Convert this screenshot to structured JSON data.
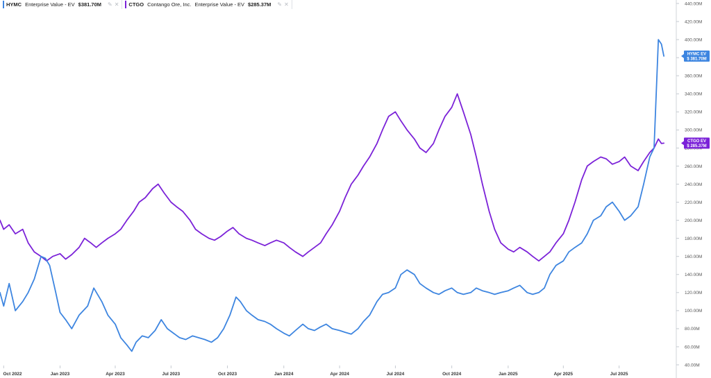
{
  "legend": [
    {
      "ticker": "HYMC",
      "name": "",
      "metric": "Enterprise Value - EV",
      "value": "$381.70M",
      "color": "#3d85e0",
      "icons": [
        "edit-icon",
        "close-icon"
      ]
    },
    {
      "ticker": "CTGO",
      "name": "Contango Ore, Inc.",
      "metric": "Enterprise Value - EV",
      "value": "$285.37M",
      "color": "#7b22d8",
      "icons": [
        "edit-icon",
        "close-icon"
      ]
    }
  ],
  "flags": [
    {
      "line1": "HYMC EV",
      "line2": "$ 381.70M",
      "color": "#3d85e0",
      "value": 381.7
    },
    {
      "line1": "CTGO EV",
      "line2": "$ 285.37M",
      "color": "#7b22d8",
      "value": 285.37
    }
  ],
  "chart_data": {
    "type": "line",
    "yaxis": {
      "min": 40,
      "max": 440,
      "position": "right",
      "ticks": [
        40,
        60,
        80,
        100,
        120,
        140,
        160,
        180,
        200,
        220,
        240,
        260,
        280,
        300,
        320,
        340,
        360,
        380,
        400,
        420,
        440
      ],
      "tick_labels": [
        "40.00M",
        "60.00M",
        "80.00M",
        "100.00M",
        "120.00M",
        "140.00M",
        "160.00M",
        "180.00M",
        "200.00M",
        "220.00M",
        "240.00M",
        "260.00M",
        "280.00M",
        "300.00M",
        "320.00M",
        "340.00M",
        "360.00M",
        "380.00M",
        "400.00M",
        "420.00M",
        "440.00M"
      ]
    },
    "xaxis": {
      "min": "2022-09-25",
      "max": "2025-09-30",
      "ticks": [
        "2022-10-01",
        "2023-01-01",
        "2023-04-01",
        "2023-07-01",
        "2023-10-01",
        "2024-01-01",
        "2024-04-01",
        "2024-07-01",
        "2024-10-01",
        "2025-01-01",
        "2025-04-01",
        "2025-07-01"
      ],
      "tick_labels": [
        "Oct 2022",
        "Jan 2023",
        "Apr 2023",
        "Jul 2023",
        "Oct 2023",
        "Jan 2024",
        "Apr 2024",
        "Jul 2024",
        "Oct 2024",
        "Jan 2025",
        "Apr 2025",
        "Jul 2025"
      ]
    },
    "grid": false,
    "series": [
      {
        "name": "HYMC",
        "color": "#3d85e0",
        "points": [
          [
            "2022-09-25",
            120
          ],
          [
            "2022-10-01",
            105
          ],
          [
            "2022-10-10",
            130
          ],
          [
            "2022-10-20",
            100
          ],
          [
            "2022-11-01",
            110
          ],
          [
            "2022-11-10",
            120
          ],
          [
            "2022-11-20",
            135
          ],
          [
            "2022-12-01",
            160
          ],
          [
            "2022-12-08",
            158
          ],
          [
            "2022-12-15",
            150
          ],
          [
            "2022-12-25",
            120
          ],
          [
            "2023-01-01",
            98
          ],
          [
            "2023-01-10",
            90
          ],
          [
            "2023-01-20",
            80
          ],
          [
            "2023-02-01",
            95
          ],
          [
            "2023-02-15",
            105
          ],
          [
            "2023-02-25",
            125
          ],
          [
            "2023-03-10",
            110
          ],
          [
            "2023-03-20",
            95
          ],
          [
            "2023-04-01",
            85
          ],
          [
            "2023-04-10",
            70
          ],
          [
            "2023-04-20",
            62
          ],
          [
            "2023-04-28",
            55
          ],
          [
            "2023-05-05",
            65
          ],
          [
            "2023-05-15",
            72
          ],
          [
            "2023-05-25",
            70
          ],
          [
            "2023-06-05",
            78
          ],
          [
            "2023-06-15",
            90
          ],
          [
            "2023-06-25",
            80
          ],
          [
            "2023-07-05",
            75
          ],
          [
            "2023-07-15",
            70
          ],
          [
            "2023-07-25",
            68
          ],
          [
            "2023-08-05",
            72
          ],
          [
            "2023-08-15",
            70
          ],
          [
            "2023-08-25",
            68
          ],
          [
            "2023-09-05",
            65
          ],
          [
            "2023-09-15",
            70
          ],
          [
            "2023-09-25",
            80
          ],
          [
            "2023-10-05",
            95
          ],
          [
            "2023-10-15",
            115
          ],
          [
            "2023-10-22",
            110
          ],
          [
            "2023-11-01",
            100
          ],
          [
            "2023-11-10",
            95
          ],
          [
            "2023-11-20",
            90
          ],
          [
            "2023-12-01",
            88
          ],
          [
            "2023-12-10",
            85
          ],
          [
            "2023-12-20",
            80
          ],
          [
            "2024-01-01",
            75
          ],
          [
            "2024-01-10",
            72
          ],
          [
            "2024-01-20",
            78
          ],
          [
            "2024-02-01",
            85
          ],
          [
            "2024-02-10",
            80
          ],
          [
            "2024-02-20",
            78
          ],
          [
            "2024-03-01",
            82
          ],
          [
            "2024-03-10",
            85
          ],
          [
            "2024-03-20",
            80
          ],
          [
            "2024-04-01",
            78
          ],
          [
            "2024-04-10",
            76
          ],
          [
            "2024-04-20",
            74
          ],
          [
            "2024-05-01",
            80
          ],
          [
            "2024-05-10",
            88
          ],
          [
            "2024-05-20",
            95
          ],
          [
            "2024-06-01",
            110
          ],
          [
            "2024-06-10",
            118
          ],
          [
            "2024-06-20",
            120
          ],
          [
            "2024-07-01",
            125
          ],
          [
            "2024-07-10",
            140
          ],
          [
            "2024-07-20",
            145
          ],
          [
            "2024-08-01",
            140
          ],
          [
            "2024-08-10",
            130
          ],
          [
            "2024-08-20",
            125
          ],
          [
            "2024-09-01",
            120
          ],
          [
            "2024-09-10",
            118
          ],
          [
            "2024-09-20",
            122
          ],
          [
            "2024-10-01",
            125
          ],
          [
            "2024-10-10",
            120
          ],
          [
            "2024-10-20",
            118
          ],
          [
            "2024-11-01",
            120
          ],
          [
            "2024-11-10",
            125
          ],
          [
            "2024-11-20",
            122
          ],
          [
            "2024-12-01",
            120
          ],
          [
            "2024-12-10",
            118
          ],
          [
            "2024-12-20",
            120
          ],
          [
            "2025-01-01",
            122
          ],
          [
            "2025-01-10",
            125
          ],
          [
            "2025-01-20",
            128
          ],
          [
            "2025-02-01",
            120
          ],
          [
            "2025-02-10",
            118
          ],
          [
            "2025-02-20",
            120
          ],
          [
            "2025-03-01",
            125
          ],
          [
            "2025-03-10",
            140
          ],
          [
            "2025-03-20",
            150
          ],
          [
            "2025-04-01",
            155
          ],
          [
            "2025-04-10",
            165
          ],
          [
            "2025-04-20",
            170
          ],
          [
            "2025-05-01",
            175
          ],
          [
            "2025-05-10",
            185
          ],
          [
            "2025-05-20",
            200
          ],
          [
            "2025-06-01",
            205
          ],
          [
            "2025-06-10",
            215
          ],
          [
            "2025-06-20",
            220
          ],
          [
            "2025-07-01",
            210
          ],
          [
            "2025-07-10",
            200
          ],
          [
            "2025-07-20",
            205
          ],
          [
            "2025-08-01",
            215
          ],
          [
            "2025-08-10",
            240
          ],
          [
            "2025-08-20",
            270
          ],
          [
            "2025-08-27",
            280
          ],
          [
            "2025-09-03",
            400
          ],
          [
            "2025-09-08",
            395
          ],
          [
            "2025-09-12",
            381.7
          ]
        ]
      },
      {
        "name": "CTGO",
        "color": "#7b22d8",
        "points": [
          [
            "2022-09-25",
            200
          ],
          [
            "2022-10-01",
            190
          ],
          [
            "2022-10-10",
            195
          ],
          [
            "2022-10-20",
            185
          ],
          [
            "2022-11-01",
            190
          ],
          [
            "2022-11-10",
            175
          ],
          [
            "2022-11-20",
            165
          ],
          [
            "2022-12-01",
            160
          ],
          [
            "2022-12-10",
            155
          ],
          [
            "2022-12-20",
            160
          ],
          [
            "2023-01-01",
            163
          ],
          [
            "2023-01-10",
            157
          ],
          [
            "2023-01-20",
            162
          ],
          [
            "2023-02-01",
            170
          ],
          [
            "2023-02-10",
            180
          ],
          [
            "2023-02-20",
            175
          ],
          [
            "2023-03-01",
            170
          ],
          [
            "2023-03-10",
            175
          ],
          [
            "2023-03-20",
            180
          ],
          [
            "2023-04-01",
            185
          ],
          [
            "2023-04-10",
            190
          ],
          [
            "2023-04-20",
            200
          ],
          [
            "2023-05-01",
            210
          ],
          [
            "2023-05-10",
            220
          ],
          [
            "2023-05-20",
            225
          ],
          [
            "2023-06-01",
            235
          ],
          [
            "2023-06-10",
            240
          ],
          [
            "2023-06-20",
            230
          ],
          [
            "2023-07-01",
            220
          ],
          [
            "2023-07-10",
            215
          ],
          [
            "2023-07-20",
            210
          ],
          [
            "2023-08-01",
            200
          ],
          [
            "2023-08-10",
            190
          ],
          [
            "2023-08-20",
            185
          ],
          [
            "2023-09-01",
            180
          ],
          [
            "2023-09-10",
            178
          ],
          [
            "2023-09-20",
            182
          ],
          [
            "2023-10-01",
            188
          ],
          [
            "2023-10-10",
            192
          ],
          [
            "2023-10-20",
            185
          ],
          [
            "2023-11-01",
            180
          ],
          [
            "2023-11-10",
            178
          ],
          [
            "2023-11-20",
            175
          ],
          [
            "2023-12-01",
            172
          ],
          [
            "2023-12-10",
            175
          ],
          [
            "2023-12-20",
            178
          ],
          [
            "2024-01-01",
            175
          ],
          [
            "2024-01-10",
            170
          ],
          [
            "2024-01-20",
            165
          ],
          [
            "2024-02-01",
            160
          ],
          [
            "2024-02-10",
            165
          ],
          [
            "2024-02-20",
            170
          ],
          [
            "2024-03-01",
            175
          ],
          [
            "2024-03-10",
            185
          ],
          [
            "2024-03-20",
            195
          ],
          [
            "2024-04-01",
            210
          ],
          [
            "2024-04-10",
            225
          ],
          [
            "2024-04-20",
            240
          ],
          [
            "2024-05-01",
            250
          ],
          [
            "2024-05-10",
            260
          ],
          [
            "2024-05-20",
            270
          ],
          [
            "2024-06-01",
            285
          ],
          [
            "2024-06-10",
            300
          ],
          [
            "2024-06-20",
            315
          ],
          [
            "2024-07-01",
            320
          ],
          [
            "2024-07-10",
            310
          ],
          [
            "2024-07-20",
            300
          ],
          [
            "2024-08-01",
            290
          ],
          [
            "2024-08-10",
            280
          ],
          [
            "2024-08-20",
            275
          ],
          [
            "2024-09-01",
            285
          ],
          [
            "2024-09-10",
            300
          ],
          [
            "2024-09-20",
            315
          ],
          [
            "2024-10-01",
            325
          ],
          [
            "2024-10-10",
            340
          ],
          [
            "2024-10-20",
            320
          ],
          [
            "2024-11-01",
            295
          ],
          [
            "2024-11-10",
            270
          ],
          [
            "2024-11-20",
            240
          ],
          [
            "2024-12-01",
            210
          ],
          [
            "2024-12-10",
            190
          ],
          [
            "2024-12-20",
            175
          ],
          [
            "2025-01-01",
            168
          ],
          [
            "2025-01-10",
            165
          ],
          [
            "2025-01-20",
            170
          ],
          [
            "2025-02-01",
            165
          ],
          [
            "2025-02-10",
            160
          ],
          [
            "2025-02-20",
            155
          ],
          [
            "2025-03-01",
            160
          ],
          [
            "2025-03-10",
            165
          ],
          [
            "2025-03-20",
            175
          ],
          [
            "2025-04-01",
            185
          ],
          [
            "2025-04-10",
            200
          ],
          [
            "2025-04-20",
            220
          ],
          [
            "2025-05-01",
            245
          ],
          [
            "2025-05-10",
            260
          ],
          [
            "2025-05-20",
            265
          ],
          [
            "2025-06-01",
            270
          ],
          [
            "2025-06-10",
            268
          ],
          [
            "2025-06-20",
            262
          ],
          [
            "2025-07-01",
            265
          ],
          [
            "2025-07-10",
            270
          ],
          [
            "2025-07-20",
            260
          ],
          [
            "2025-08-01",
            255
          ],
          [
            "2025-08-10",
            265
          ],
          [
            "2025-08-20",
            275
          ],
          [
            "2025-08-27",
            280
          ],
          [
            "2025-09-03",
            290
          ],
          [
            "2025-09-08",
            285
          ],
          [
            "2025-09-12",
            285.37
          ]
        ]
      }
    ]
  }
}
